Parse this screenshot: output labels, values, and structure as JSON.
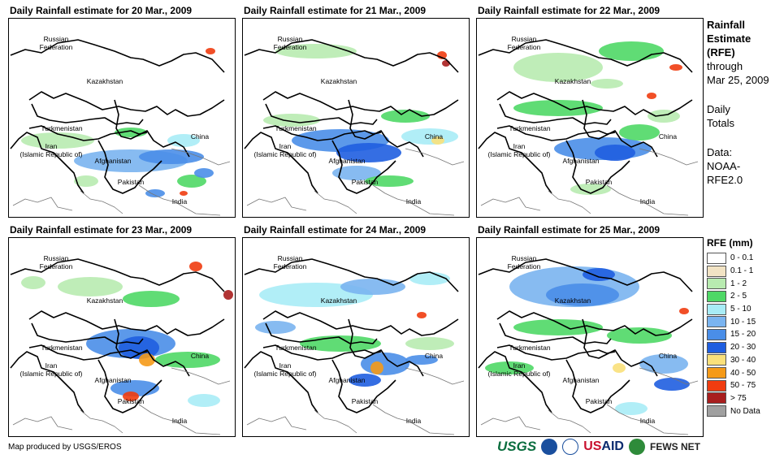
{
  "panels": [
    {
      "title": "Daily Rainfall estimate for 20 Mar., 2009"
    },
    {
      "title": "Daily Rainfall estimate for 21 Mar., 2009"
    },
    {
      "title": "Daily Rainfall estimate for 22 Mar., 2009"
    },
    {
      "title": "Daily Rainfall estimate for 23 Mar., 2009"
    },
    {
      "title": "Daily Rainfall estimate for 24 Mar., 2009"
    },
    {
      "title": "Daily Rainfall estimate for 25 Mar., 2009"
    }
  ],
  "map_labels": {
    "russia_1": "Russian",
    "russia_2": "Federation",
    "kazakhstan": "Kazakhstan",
    "turkmenistan": "Turkmenistan",
    "iran_1": "Iran",
    "iran_2": "(Islamic Republic of)",
    "afghanistan": "Afghanistan",
    "pakistan": "Pakistan",
    "india": "India",
    "china": "China"
  },
  "sidebar": {
    "title_1": "Rainfall",
    "title_2": "Estimate",
    "title_3": "(RFE)",
    "through": "through",
    "date": "Mar 25, 2009",
    "daily_1": "Daily",
    "daily_2": "Totals",
    "data_1": "Data:",
    "data_2": "NOAA-",
    "data_3": "RFE2.0"
  },
  "legend": {
    "title": "RFE (mm)",
    "items": [
      {
        "label": "0 - 0.1",
        "color": "#ffffff"
      },
      {
        "label": "0.1 - 1",
        "color": "#f2e3c4"
      },
      {
        "label": "1 - 2",
        "color": "#b8ebb0"
      },
      {
        "label": "2 - 5",
        "color": "#4fd866"
      },
      {
        "label": "5 - 10",
        "color": "#a8ecf6"
      },
      {
        "label": "10 - 15",
        "color": "#7ab4f0"
      },
      {
        "label": "15 - 20",
        "color": "#4a8ee8"
      },
      {
        "label": "20 - 30",
        "color": "#1f5ee0"
      },
      {
        "label": "30 - 40",
        "color": "#fae07a"
      },
      {
        "label": "40 - 50",
        "color": "#f59a18"
      },
      {
        "label": "50 - 75",
        "color": "#f03c10"
      },
      {
        "label": "> 75",
        "color": "#a81e1e"
      },
      {
        "label": "No Data",
        "color": "#a0a0a0"
      }
    ]
  },
  "footer": {
    "credit": "Map produced by USGS/EROS",
    "usgs": "USGS",
    "usaid_1": "US",
    "usaid_2": "AID",
    "fews": "FEWS NET"
  }
}
